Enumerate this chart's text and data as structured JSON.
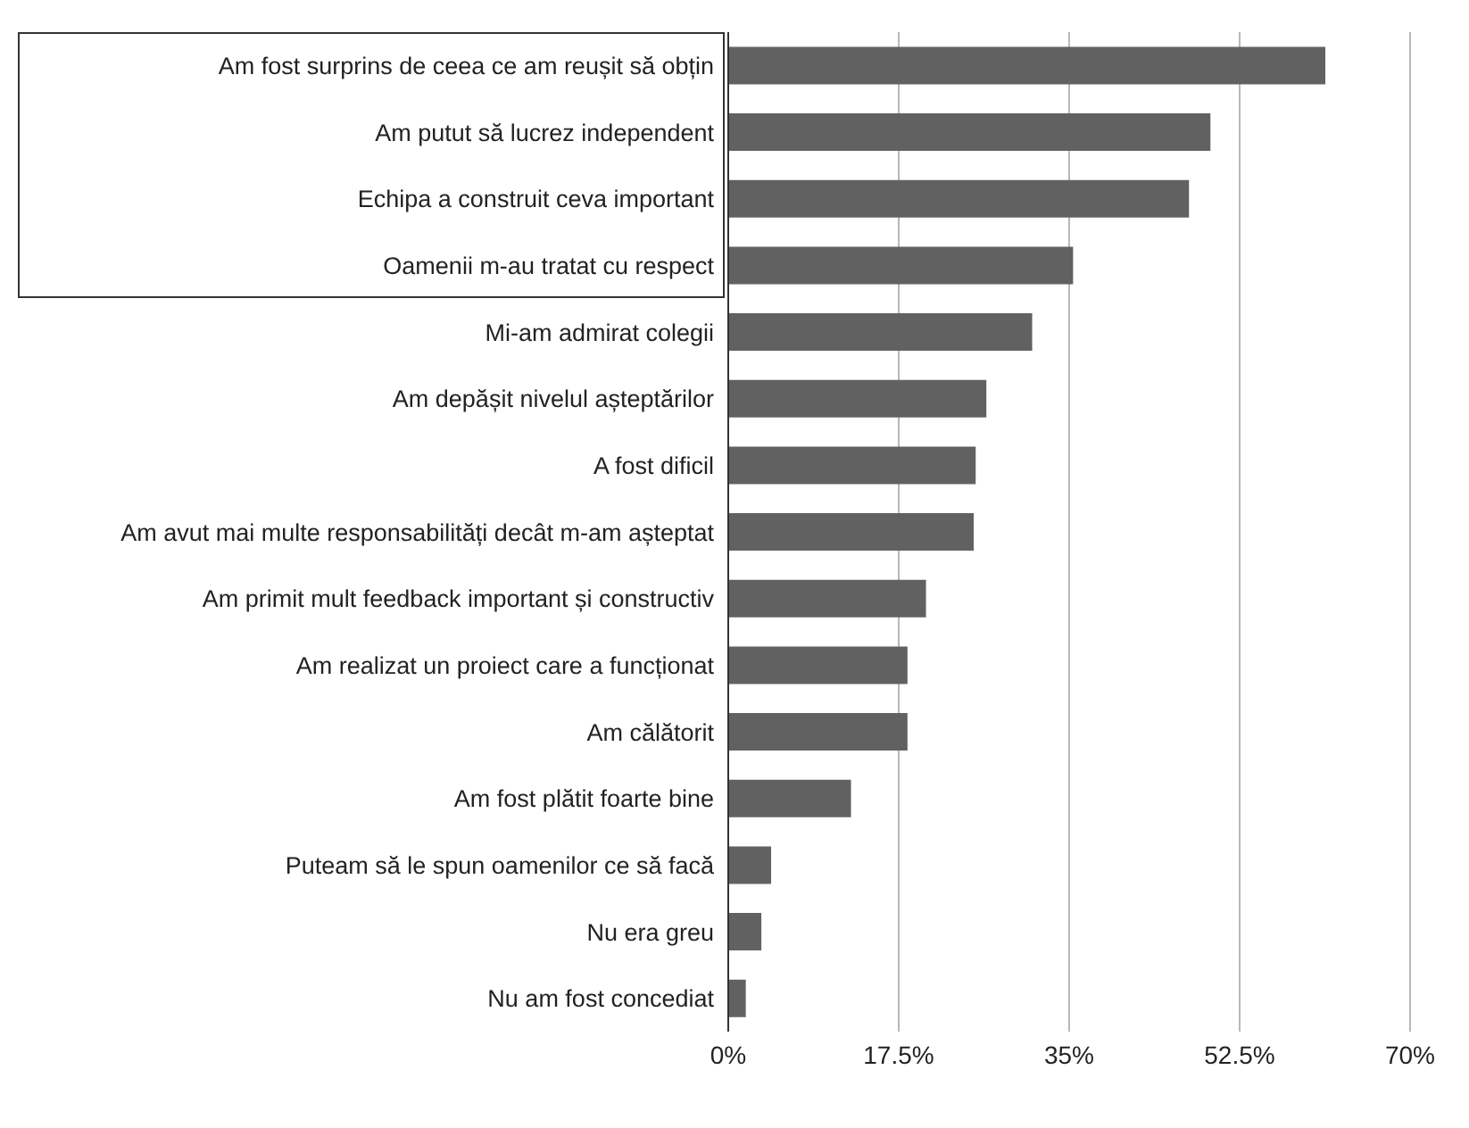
{
  "chart_data": {
    "type": "bar",
    "orientation": "horizontal",
    "categories": [
      "Am fost surprins de ceea ce am reușit să obțin",
      "Am putut să lucrez independent",
      "Echipa a construit ceva important",
      "Oamenii m-au tratat cu respect",
      "Mi-am admirat colegii",
      "Am depășit nivelul așteptărilor",
      "A fost dificil",
      "Am avut mai multe responsabilități decât m-am așteptat",
      "Am primit mult feedback important și constructiv",
      "Am realizat un proiect care a funcționat",
      "Am călătorit",
      "Am fost plătit foarte bine",
      "Puteam să le spun oamenilor ce să facă",
      "Nu era greu",
      "Nu am fost concediat"
    ],
    "values": [
      61.3,
      49.5,
      47.3,
      35.4,
      31.2,
      26.5,
      25.4,
      25.2,
      20.3,
      18.4,
      18.4,
      12.6,
      4.4,
      3.4,
      1.8
    ],
    "color": "#616161",
    "xlim": [
      0,
      70
    ],
    "xticks": [
      {
        "value": 0,
        "label": "0%"
      },
      {
        "value": 17.5,
        "label": "17.5%"
      },
      {
        "value": 35,
        "label": "35%"
      },
      {
        "value": 52.5,
        "label": "52.5%"
      },
      {
        "value": 70,
        "label": "70%"
      }
    ],
    "grid": "x"
  }
}
